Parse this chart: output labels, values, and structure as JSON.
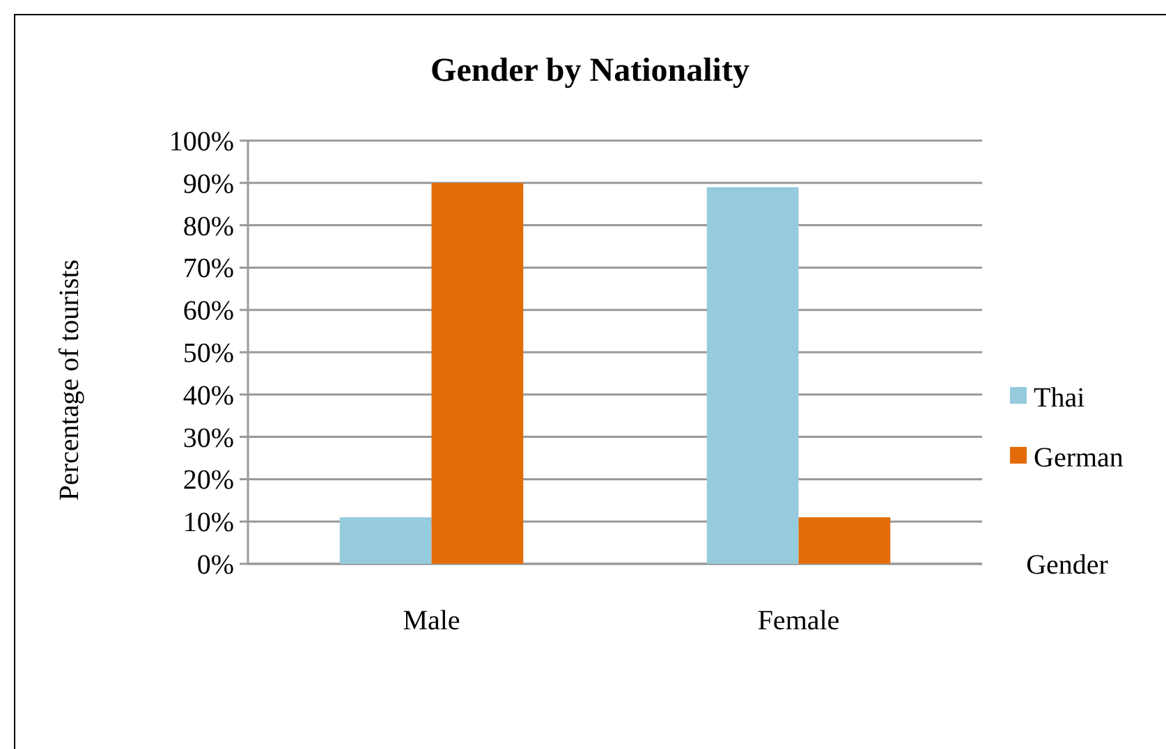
{
  "chart_data": {
    "type": "bar",
    "title": "Gender by Nationality",
    "xlabel": "Gender",
    "ylabel": "Percentage of tourists",
    "categories": [
      "Male",
      "Female"
    ],
    "series": [
      {
        "name": "Thai",
        "color": "#95cbdc",
        "values": [
          11,
          89
        ]
      },
      {
        "name": "German",
        "color": "#e36c0a",
        "values": [
          90,
          11
        ]
      }
    ],
    "ylim": [
      0,
      100
    ],
    "yticks": [
      {
        "value": 0,
        "label": "0%"
      },
      {
        "value": 10,
        "label": "10%"
      },
      {
        "value": 20,
        "label": "20%"
      },
      {
        "value": 30,
        "label": "30%"
      },
      {
        "value": 40,
        "label": "40%"
      },
      {
        "value": 50,
        "label": "50%"
      },
      {
        "value": 60,
        "label": "60%"
      },
      {
        "value": 70,
        "label": "70%"
      },
      {
        "value": 80,
        "label": "80%"
      },
      {
        "value": 90,
        "label": "90%"
      },
      {
        "value": 100,
        "label": "100%"
      }
    ],
    "grid": "y",
    "legend": "right"
  }
}
